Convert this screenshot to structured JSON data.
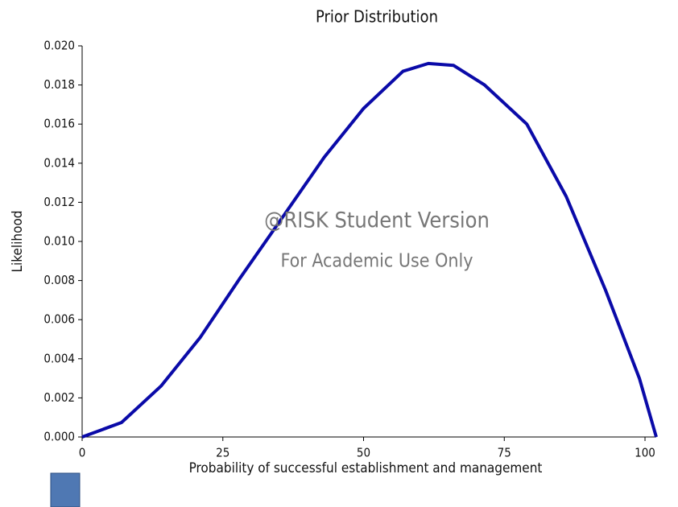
{
  "chart_data": {
    "type": "line",
    "title": "Prior Distribution",
    "x_label": "Probability of successful establishment and management",
    "y_label": "Likelihood",
    "annotations": [
      "@RISK Student Version",
      "For Academic Use Only"
    ],
    "x": [
      0,
      7,
      14,
      21,
      28,
      36,
      43,
      50,
      57,
      61.5,
      66,
      71.5,
      79,
      86,
      93,
      99,
      102
    ],
    "series": [
      {
        "name": "Prior",
        "color": "#0a0aa8",
        "values": [
          0,
          0.00074,
          0.0026,
          0.0051,
          0.0081,
          0.0114,
          0.0143,
          0.0168,
          0.0187,
          0.0191,
          0.019,
          0.018,
          0.016,
          0.0123,
          0.0075,
          0.003,
          0
        ]
      }
    ],
    "xlim": [
      0,
      102
    ],
    "xticks": [
      0,
      25,
      50,
      75,
      100
    ],
    "ylim": [
      0,
      0.02
    ],
    "yticks": [
      {
        "value": 0,
        "label": "0.000"
      },
      {
        "value": 0.002,
        "label": "0.002"
      },
      {
        "value": 0.004,
        "label": "0.004"
      },
      {
        "value": 0.006,
        "label": "0.006"
      },
      {
        "value": 0.008,
        "label": "0.008"
      },
      {
        "value": 0.01,
        "label": "0.010"
      },
      {
        "value": 0.012,
        "label": "0.012"
      },
      {
        "value": 0.014,
        "label": "0.014"
      },
      {
        "value": 0.016,
        "label": "0.016"
      },
      {
        "value": 0.018,
        "label": "0.018"
      },
      {
        "value": 0.02,
        "label": "0.020"
      }
    ]
  }
}
